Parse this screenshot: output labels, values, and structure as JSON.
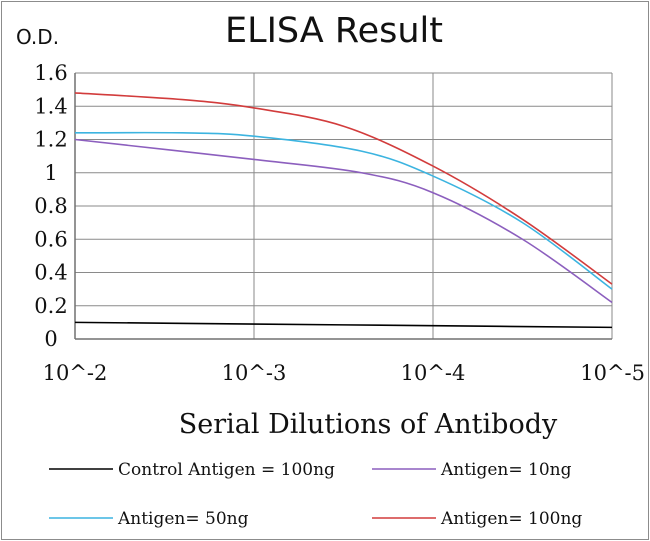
{
  "chart_data": {
    "type": "line",
    "title": "ELISA Result",
    "ylabel": "O.D.",
    "xlabel": "Serial Dilutions  of Antibody",
    "x_ticks": [
      "10^-2",
      "10^-3",
      "10^-4",
      "10^-5"
    ],
    "y_ticks": [
      "0",
      "0.2",
      "0.4",
      "0.6",
      "0.8",
      "1",
      "1.2",
      "1.4",
      "1.6"
    ],
    "ylim": [
      0,
      1.6
    ],
    "x_scale": "log",
    "grid": true,
    "legend_position": "bottom",
    "series": [
      {
        "name": "Control Antigen = 100ng",
        "color": "#000000",
        "points": [
          [
            0,
            0.1
          ],
          [
            1,
            0.09
          ],
          [
            2,
            0.08
          ],
          [
            3,
            0.07
          ]
        ]
      },
      {
        "name": "Antigen= 10ng",
        "color": "#8c5fbe",
        "points": [
          [
            0,
            1.2
          ],
          [
            1,
            1.08
          ],
          [
            1.6,
            1.0
          ],
          [
            2,
            0.88
          ],
          [
            2.5,
            0.6
          ],
          [
            3,
            0.22
          ]
        ]
      },
      {
        "name": "Antigen= 50ng",
        "color": "#3cb4e0",
        "points": [
          [
            0,
            1.24
          ],
          [
            0.6,
            1.24
          ],
          [
            1,
            1.22
          ],
          [
            1.6,
            1.13
          ],
          [
            2,
            0.98
          ],
          [
            2.5,
            0.7
          ],
          [
            3,
            0.3
          ]
        ]
      },
      {
        "name": "Antigen= 100ng",
        "color": "#d23c3c",
        "points": [
          [
            0,
            1.48
          ],
          [
            0.6,
            1.44
          ],
          [
            1,
            1.39
          ],
          [
            1.5,
            1.28
          ],
          [
            2,
            1.04
          ],
          [
            2.5,
            0.72
          ],
          [
            3,
            0.33
          ]
        ]
      }
    ]
  }
}
